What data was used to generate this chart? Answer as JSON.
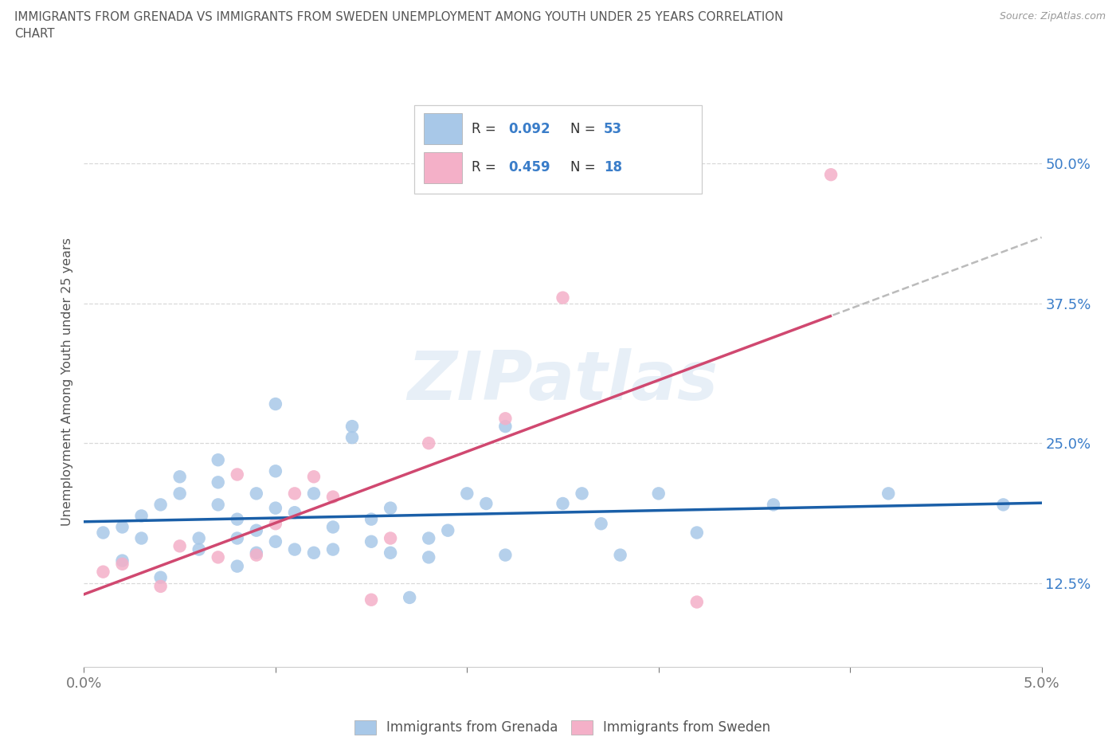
{
  "title_line1": "IMMIGRANTS FROM GRENADA VS IMMIGRANTS FROM SWEDEN UNEMPLOYMENT AMONG YOUTH UNDER 25 YEARS CORRELATION",
  "title_line2": "CHART",
  "source": "Source: ZipAtlas.com",
  "ylabel": "Unemployment Among Youth under 25 years",
  "watermark": "ZIPatlas",
  "grenada": {
    "name": "Immigrants from Grenada",
    "color": "#a8c8e8",
    "line_color": "#1a5fa8",
    "R": 0.092,
    "N": 53,
    "x": [
      0.001,
      0.002,
      0.002,
      0.003,
      0.003,
      0.004,
      0.004,
      0.005,
      0.005,
      0.006,
      0.006,
      0.007,
      0.007,
      0.007,
      0.008,
      0.008,
      0.008,
      0.009,
      0.009,
      0.009,
      0.01,
      0.01,
      0.01,
      0.01,
      0.011,
      0.011,
      0.012,
      0.012,
      0.013,
      0.013,
      0.014,
      0.014,
      0.015,
      0.015,
      0.016,
      0.016,
      0.017,
      0.018,
      0.018,
      0.019,
      0.02,
      0.021,
      0.022,
      0.022,
      0.025,
      0.026,
      0.027,
      0.028,
      0.03,
      0.032,
      0.036,
      0.042,
      0.048
    ],
    "y": [
      0.17,
      0.145,
      0.175,
      0.165,
      0.185,
      0.13,
      0.195,
      0.205,
      0.22,
      0.155,
      0.165,
      0.195,
      0.215,
      0.235,
      0.14,
      0.165,
      0.182,
      0.152,
      0.172,
      0.205,
      0.162,
      0.192,
      0.225,
      0.285,
      0.155,
      0.188,
      0.152,
      0.205,
      0.155,
      0.175,
      0.255,
      0.265,
      0.162,
      0.182,
      0.152,
      0.192,
      0.112,
      0.148,
      0.165,
      0.172,
      0.205,
      0.196,
      0.15,
      0.265,
      0.196,
      0.205,
      0.178,
      0.15,
      0.205,
      0.17,
      0.195,
      0.205,
      0.195
    ]
  },
  "sweden": {
    "name": "Immigrants from Sweden",
    "color": "#f4b0c8",
    "line_color": "#d04870",
    "R": 0.459,
    "N": 18,
    "x": [
      0.001,
      0.002,
      0.004,
      0.005,
      0.007,
      0.008,
      0.009,
      0.01,
      0.011,
      0.012,
      0.013,
      0.015,
      0.016,
      0.018,
      0.022,
      0.025,
      0.032,
      0.039
    ],
    "y": [
      0.135,
      0.142,
      0.122,
      0.158,
      0.148,
      0.222,
      0.15,
      0.178,
      0.205,
      0.22,
      0.202,
      0.11,
      0.165,
      0.25,
      0.272,
      0.38,
      0.108,
      0.49
    ]
  },
  "xlim": [
    0.0,
    0.05
  ],
  "ylim": [
    0.05,
    0.56
  ],
  "yticks": [
    0.125,
    0.25,
    0.375,
    0.5
  ],
  "ytick_labels": [
    "12.5%",
    "25.0%",
    "37.5%",
    "50.0%"
  ],
  "xticks": [
    0.0,
    0.01,
    0.02,
    0.03,
    0.04,
    0.05
  ],
  "xtick_labels": [
    "0.0%",
    "",
    "",
    "",
    "",
    "5.0%"
  ],
  "grid_color": "#d8d8d8",
  "background_color": "#ffffff",
  "tick_color": "#3a7dc9",
  "legend_text_color": "#3a7dc9",
  "title_color": "#555555",
  "source_color": "#999999",
  "ylabel_color": "#555555"
}
